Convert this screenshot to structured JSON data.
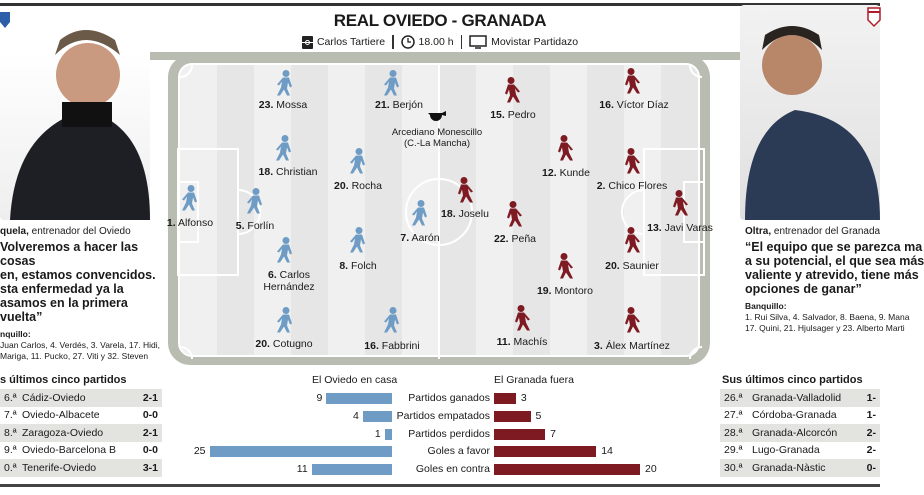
{
  "header": {
    "title": "REAL OVIEDO  -  GRANADA",
    "stadium": "Carlos Tartiere",
    "time": "18.00 h",
    "tv": "Movistar Partidazo",
    "icons": [
      "stadium-icon",
      "clock-icon",
      "tv-icon"
    ]
  },
  "colors": {
    "oviedo": "#6f9cc4",
    "granada": "#7e1a22",
    "pitch_border": "#b9bcb0"
  },
  "referee": {
    "name": "Arcediano Monescillo",
    "region": "(C.-La Mancha)",
    "icon": "whistle-icon"
  },
  "oviedo": {
    "players": [
      {
        "num": "23.",
        "name": "Mossa"
      },
      {
        "num": "21.",
        "name": "Berjón"
      },
      {
        "num": "18.",
        "name": "Christian"
      },
      {
        "num": "20.",
        "name": "Rocha"
      },
      {
        "num": "1.",
        "name": "Alfonso"
      },
      {
        "num": "5.",
        "name": "Forlín"
      },
      {
        "num": "7.",
        "name": "Aarón"
      },
      {
        "num": "6.",
        "name": "Carlos",
        "name2": "Hernández"
      },
      {
        "num": "8.",
        "name": "Folch"
      },
      {
        "num": "20.",
        "name": "Cotugno"
      },
      {
        "num": "16.",
        "name": "Fabbrini"
      }
    ],
    "coach_name": "quela,",
    "coach_role": " entrenador del Oviedo",
    "quote": "Volveremos a hacer las cosas en, estamos convencidos. sta enfermedad ya la asamos en la primera vuelta”",
    "quote_lines": [
      "Volveremos a hacer las cosas",
      "en, estamos convencidos.",
      "sta enfermedad ya la",
      "asamos en la primera vuelta”"
    ],
    "bench_label": "nquillo:",
    "bench_lines": [
      "Juan Carlos, 4. Verdés, 3. Varela, 17. Hidi,",
      "Mariga, 11. Pucko, 27. Viti y 32. Steven"
    ],
    "last5_title": "s últimos cinco partidos",
    "last5": [
      {
        "round": "6.ª",
        "match": "Cádiz-Oviedo",
        "score": "2-1"
      },
      {
        "round": "7.ª",
        "match": "Oviedo-Albacete",
        "score": "0-0"
      },
      {
        "round": "8.ª",
        "match": "Zaragoza-Oviedo",
        "score": "2-1"
      },
      {
        "round": "9.ª",
        "match": "Oviedo-Barcelona B",
        "score": "0-0"
      },
      {
        "round": "0.ª",
        "match": "Tenerife-Oviedo",
        "score": "3-1"
      }
    ]
  },
  "granada": {
    "players": [
      {
        "num": "15.",
        "name": "Pedro"
      },
      {
        "num": "16.",
        "name": "Víctor Díaz"
      },
      {
        "num": "12.",
        "name": "Kunde"
      },
      {
        "num": "2.",
        "name": "Chico Flores"
      },
      {
        "num": "18.",
        "name": "Joselu"
      },
      {
        "num": "22.",
        "name": "Peña"
      },
      {
        "num": "13.",
        "name": "Javi Varas"
      },
      {
        "num": "20.",
        "name": "Saunier"
      },
      {
        "num": "19.",
        "name": "Montoro"
      },
      {
        "num": "11.",
        "name": "Machís"
      },
      {
        "num": "3.",
        "name": "Álex Martínez"
      }
    ],
    "coach_name": "Oltra,",
    "coach_role": " entrenador del Granada",
    "quote_lines": [
      "“El equipo que se parezca ma",
      "a su potencial, el que sea más",
      "valiente y atrevido, tiene más",
      "opciones de ganar”"
    ],
    "bench_label": "Banquillo:",
    "bench_lines": [
      "1. Rui Silva, 4. Salvador, 8. Baena, 9. Mana",
      "17. Quini, 21. Hjulsager y 23. Alberto Marti"
    ],
    "last5_title": "Sus últimos cinco partidos",
    "last5": [
      {
        "round": "26.ª",
        "match": "Granada-Valladolid",
        "score": "1-"
      },
      {
        "round": "27.ª",
        "match": "Córdoba-Granada",
        "score": "1-"
      },
      {
        "round": "28.ª",
        "match": "Granada-Alcorcón",
        "score": "2-"
      },
      {
        "round": "29.ª",
        "match": "Lugo-Granada",
        "score": "2-"
      },
      {
        "round": "30.ª",
        "match": "Granada-Nàstic",
        "score": "0-"
      }
    ]
  },
  "chart_data": {
    "type": "bar",
    "left_title": "El Oviedo en casa",
    "right_title": "El Granada fuera",
    "categories": [
      "Partidos ganados",
      "Partidos empatados",
      "Partidos perdidos",
      "Goles a favor",
      "Goles en contra"
    ],
    "series": [
      {
        "name": "El Oviedo en casa",
        "values": [
          9,
          4,
          1,
          25,
          11
        ]
      },
      {
        "name": "El Granada fuera",
        "values": [
          3,
          5,
          7,
          14,
          20
        ]
      }
    ]
  }
}
